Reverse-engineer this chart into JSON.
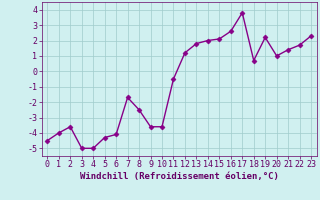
{
  "x": [
    0,
    1,
    2,
    3,
    4,
    5,
    6,
    7,
    8,
    9,
    10,
    11,
    12,
    13,
    14,
    15,
    16,
    17,
    18,
    19,
    20,
    21,
    22,
    23
  ],
  "y": [
    -4.5,
    -4.0,
    -3.6,
    -5.0,
    -5.0,
    -4.3,
    -4.1,
    -1.7,
    -2.5,
    -3.6,
    -3.6,
    -0.5,
    1.2,
    1.8,
    2.0,
    2.1,
    2.6,
    3.8,
    0.7,
    2.2,
    1.0,
    1.4,
    1.7,
    2.3
  ],
  "line_color": "#880088",
  "marker": "D",
  "markersize": 2.5,
  "linewidth": 1.0,
  "xlabel": "Windchill (Refroidissement éolien,°C)",
  "xlim": [
    -0.5,
    23.5
  ],
  "ylim": [
    -5.5,
    4.5
  ],
  "yticks": [
    -5,
    -4,
    -3,
    -2,
    -1,
    0,
    1,
    2,
    3,
    4
  ],
  "xticks": [
    0,
    1,
    2,
    3,
    4,
    5,
    6,
    7,
    8,
    9,
    10,
    11,
    12,
    13,
    14,
    15,
    16,
    17,
    18,
    19,
    20,
    21,
    22,
    23
  ],
  "bg_color": "#d0f0f0",
  "grid_color": "#a0cccc",
  "tick_color": "#660066",
  "xlabel_fontsize": 6.5,
  "tick_fontsize": 6.0,
  "axis_label_color": "#660066"
}
